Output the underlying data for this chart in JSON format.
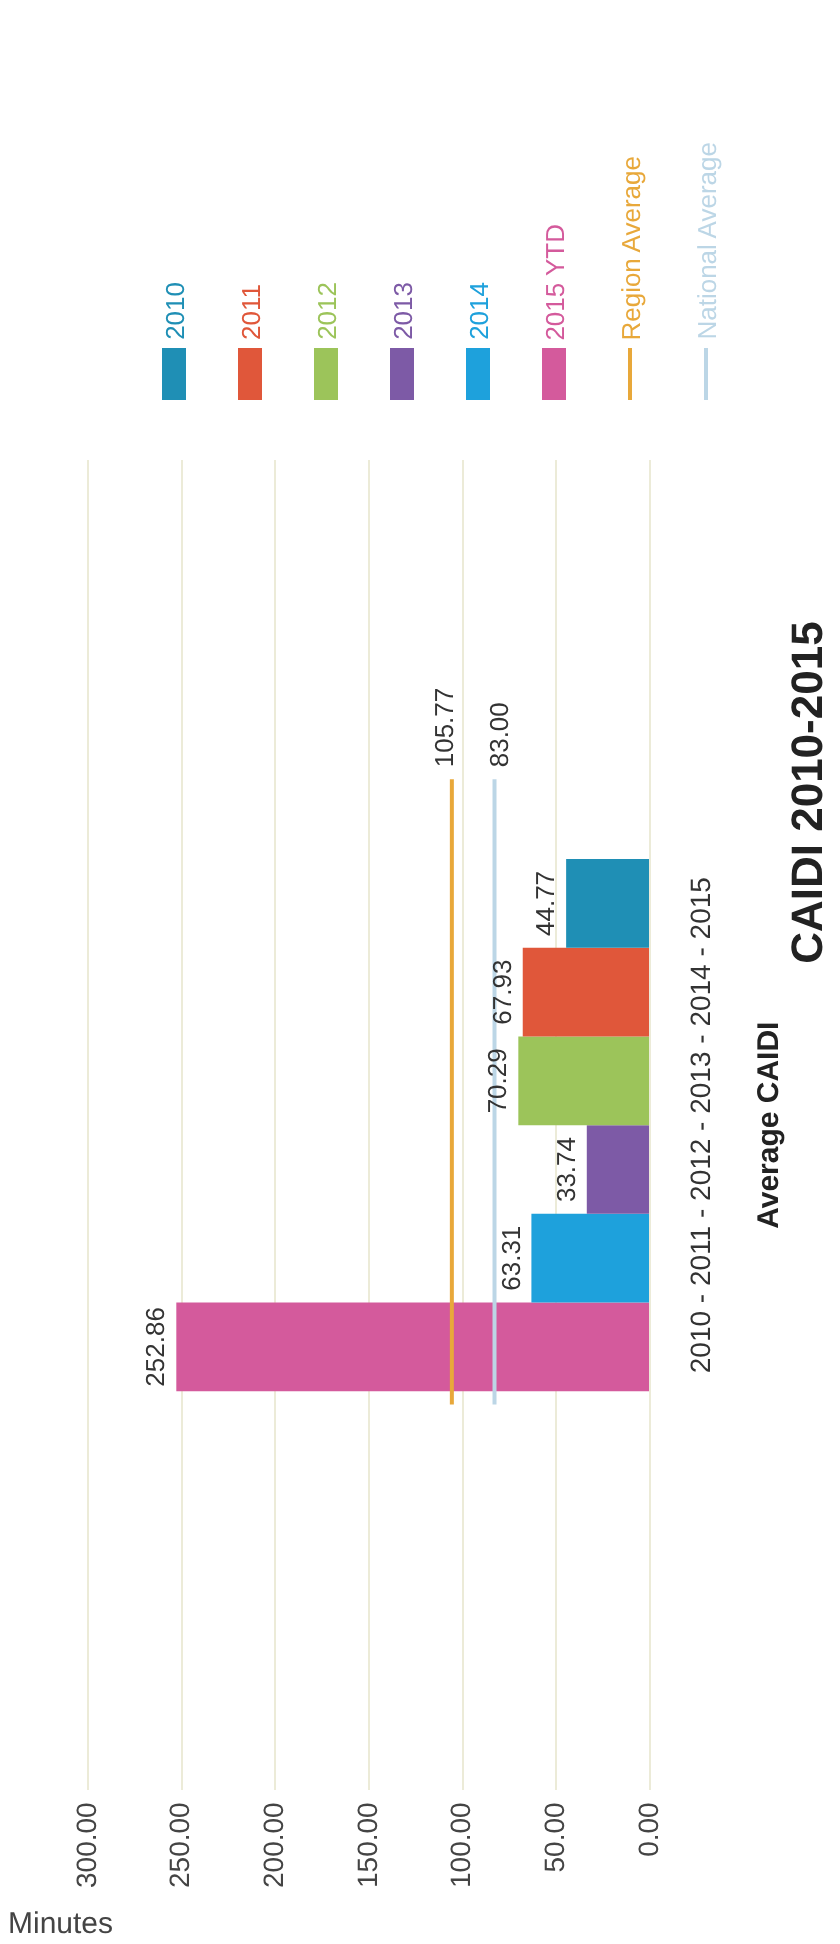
{
  "chart_data": {
    "type": "bar",
    "orientation": "horizontal",
    "title": "CAIDI 2010-2015",
    "xlabel": "Minutes",
    "ylabel": "Average CAIDI",
    "categories": [
      "2010 - 2011 - 2012 - 2013 - 2014 - 2015"
    ],
    "series": [
      {
        "name": "2010",
        "color": "#1f8fb5",
        "values": [
          44.77
        ],
        "value_labels": [
          "44.77"
        ]
      },
      {
        "name": "2011",
        "color": "#e0573a",
        "values": [
          67.93
        ],
        "value_labels": [
          "67.93"
        ]
      },
      {
        "name": "2012",
        "color": "#9cc45a",
        "values": [
          70.29
        ],
        "value_labels": [
          "70.29"
        ]
      },
      {
        "name": "2013",
        "color": "#7d5aa6",
        "values": [
          33.74
        ],
        "value_labels": [
          "33.74"
        ]
      },
      {
        "name": "2014",
        "color": "#1ea1dc",
        "values": [
          63.31
        ],
        "value_labels": [
          "63.31"
        ]
      },
      {
        "name": "2015 YTD",
        "color": "#d45a9c",
        "values": [
          252.86
        ],
        "value_labels": [
          "252.86"
        ]
      }
    ],
    "ref_lines": [
      {
        "axis": "x",
        "value": 105.77,
        "label": "Region Average",
        "color": "#e8a83a"
      },
      {
        "axis": "x",
        "value": 83,
        "label": "National Average",
        "color": "#bcd6e6"
      }
    ],
    "annotations": [
      "105.77",
      "83.00"
    ],
    "xlim": [
      300,
      0
    ],
    "xticks": [
      {
        "value": 0,
        "label": "0.00"
      },
      {
        "value": 50,
        "label": "50.00"
      },
      {
        "value": 100,
        "label": "100.00"
      },
      {
        "value": 150,
        "label": "150.00"
      },
      {
        "value": 200,
        "label": "200.00"
      },
      {
        "value": 250,
        "label": "250.00"
      },
      {
        "value": 300,
        "label": "300.00"
      }
    ],
    "grid": "x",
    "legend": "top"
  }
}
